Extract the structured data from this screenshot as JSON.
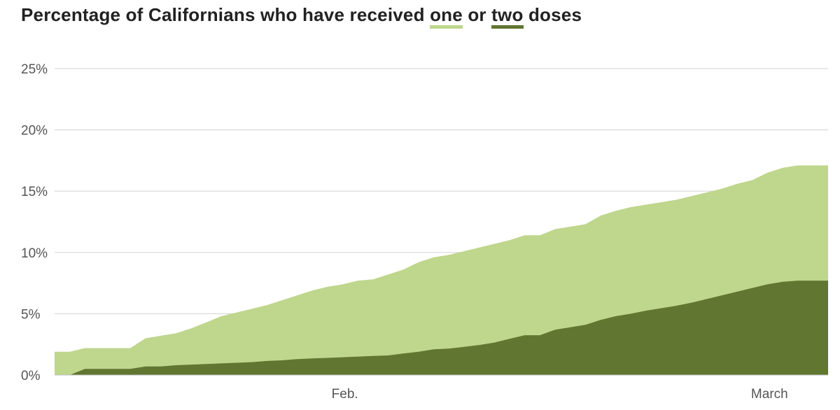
{
  "title": {
    "prefix": "Percentage of Californians who have received ",
    "one": "one",
    "middle": " or ",
    "two": "two",
    "suffix": " doses"
  },
  "colors": {
    "one_dose": "#bfd68d",
    "two_doses": "#607631",
    "gridline": "#d9d9d9",
    "axis": "#555555"
  },
  "chart_data": {
    "type": "area",
    "stacking": "overlay",
    "title": "Percentage of Californians who have received one or two doses",
    "xlabel": "",
    "ylabel": "",
    "ylim": [
      0,
      25
    ],
    "xlim": [
      "Jan. 13",
      "Mar. 5"
    ],
    "y_ticks": [
      {
        "value": 0,
        "label": "0%"
      },
      {
        "value": 5,
        "label": "5%"
      },
      {
        "value": 10,
        "label": "10%"
      },
      {
        "value": 15,
        "label": "15%"
      },
      {
        "value": 20,
        "label": "20%"
      },
      {
        "value": 25,
        "label": "25%"
      }
    ],
    "x_ticks": [
      {
        "value": "Feb. 1",
        "label": "Feb."
      },
      {
        "value": "Mar. 1",
        "label": "March"
      }
    ],
    "grid": true,
    "x": [
      "Jan. 13",
      "Jan. 14",
      "Jan. 15",
      "Jan. 16",
      "Jan. 17",
      "Jan. 18",
      "Jan. 19",
      "Jan. 20",
      "Jan. 21",
      "Jan. 22",
      "Jan. 23",
      "Jan. 24",
      "Jan. 25",
      "Jan. 26",
      "Jan. 27",
      "Jan. 28",
      "Jan. 29",
      "Jan. 30",
      "Jan. 31",
      "Feb. 1",
      "Feb. 2",
      "Feb. 3",
      "Feb. 4",
      "Feb. 5",
      "Feb. 6",
      "Feb. 7",
      "Feb. 8",
      "Feb. 9",
      "Feb. 10",
      "Feb. 11",
      "Feb. 12",
      "Feb. 13",
      "Feb. 14",
      "Feb. 15",
      "Feb. 16",
      "Feb. 17",
      "Feb. 18",
      "Feb. 19",
      "Feb. 20",
      "Feb. 21",
      "Feb. 22",
      "Feb. 23",
      "Feb. 24",
      "Feb. 25",
      "Feb. 26",
      "Feb. 27",
      "Feb. 28",
      "Mar. 1",
      "Mar. 2",
      "Mar. 3",
      "Mar. 4",
      "Mar. 5"
    ],
    "series": [
      {
        "name": "one",
        "color": "#bfd68d",
        "values": [
          1.9,
          1.9,
          2.2,
          2.2,
          2.2,
          2.2,
          3.0,
          3.2,
          3.4,
          3.8,
          4.3,
          4.8,
          5.1,
          5.4,
          5.7,
          6.1,
          6.5,
          6.9,
          7.2,
          7.4,
          7.7,
          7.8,
          8.2,
          8.6,
          9.2,
          9.6,
          9.8,
          10.1,
          10.4,
          10.7,
          11.0,
          11.4,
          11.4,
          11.9,
          12.1,
          12.3,
          13.0,
          13.4,
          13.7,
          13.9,
          14.1,
          14.3,
          14.6,
          14.9,
          15.2,
          15.6,
          15.9,
          16.5,
          16.9,
          17.1,
          17.1,
          17.1
        ]
      },
      {
        "name": "two",
        "color": "#607631",
        "values": [
          0,
          0,
          0.5,
          0.5,
          0.5,
          0.5,
          0.7,
          0.7,
          0.8,
          0.85,
          0.9,
          0.95,
          1.0,
          1.05,
          1.15,
          1.2,
          1.3,
          1.35,
          1.4,
          1.45,
          1.5,
          1.55,
          1.6,
          1.75,
          1.9,
          2.1,
          2.15,
          2.3,
          2.45,
          2.65,
          2.95,
          3.25,
          3.25,
          3.7,
          3.9,
          4.1,
          4.5,
          4.8,
          5.0,
          5.25,
          5.45,
          5.65,
          5.9,
          6.2,
          6.5,
          6.8,
          7.1,
          7.4,
          7.6,
          7.7,
          7.7,
          7.7
        ]
      }
    ]
  }
}
